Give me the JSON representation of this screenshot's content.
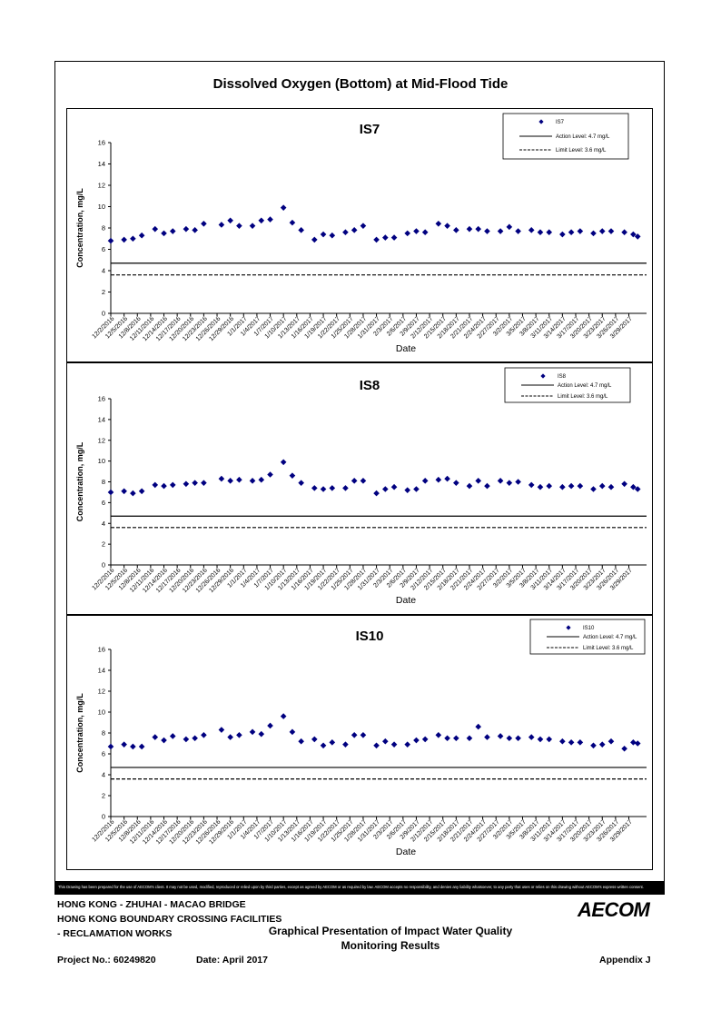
{
  "page": {
    "title": "Dissolved Oxygen (Bottom) at Mid-Flood Tide",
    "disclaimer": "This Drawing has been prepared for the use of AECOM's client. It may not be used, modified, reproduced or relied upon by third parties, except as agreed by AECOM or as required by law. AECOM accepts no responsibility, and denies any liability whatsoever, to any party that uses or relies on this drawing without AECOM's express written consent.",
    "project_lines": [
      "HONG KONG - ZHUHAI - MACAO BRIDGE",
      "HONG KONG BOUNDARY CROSSING FACILITIES",
      "- RECLAMATION WORKS"
    ],
    "presentation_title_1": "Graphical Presentation of Impact Water Quality",
    "presentation_title_2": "Monitoring Results",
    "project_no": "Project No.: 60249820",
    "date": "Date: April 2017",
    "appendix": "Appendix J",
    "logo": "AECOM"
  },
  "chart_data": [
    {
      "type": "scatter",
      "title": "IS7",
      "xlabel": "Date",
      "ylabel": "Concentration, mg/L",
      "ylim": [
        0,
        16
      ],
      "yticks": [
        0,
        2,
        4,
        6,
        8,
        10,
        12,
        14,
        16
      ],
      "xtick_labels": [
        "12/2/2016",
        "12/5/2016",
        "12/8/2016",
        "12/11/2016",
        "12/14/2016",
        "12/17/2016",
        "12/20/2016",
        "12/23/2016",
        "12/26/2016",
        "12/29/2016",
        "1/1/2017",
        "1/4/2017",
        "1/7/2017",
        "1/10/2017",
        "1/13/2017",
        "1/16/2017",
        "1/19/2017",
        "1/22/2017",
        "1/25/2017",
        "1/28/2017",
        "1/31/2017",
        "2/3/2017",
        "2/6/2017",
        "2/9/2017",
        "2/12/2017",
        "2/15/2017",
        "2/18/2017",
        "2/21/2017",
        "2/24/2017",
        "2/27/2017",
        "3/2/2017",
        "3/5/2017",
        "3/8/2017",
        "3/11/2017",
        "3/14/2017",
        "3/17/2017",
        "3/20/2017",
        "3/23/2017",
        "3/26/2017",
        "3/29/2017"
      ],
      "grid": false,
      "legend_position": "top-right",
      "series": [
        {
          "name": "IS7",
          "color": "#000080",
          "marker": "diamond",
          "x": [
            "12/2/2016",
            "12/5/2016",
            "12/7/2016",
            "12/9/2016",
            "12/12/2016",
            "12/14/2016",
            "12/16/2016",
            "12/19/2016",
            "12/21/2016",
            "12/23/2016",
            "12/27/2016",
            "12/29/2016",
            "12/31/2016",
            "1/3/2017",
            "1/5/2017",
            "1/7/2017",
            "1/10/2017",
            "1/12/2017",
            "1/14/2017",
            "1/17/2017",
            "1/19/2017",
            "1/21/2017",
            "1/24/2017",
            "1/26/2017",
            "1/28/2017",
            "1/31/2017",
            "2/2/2017",
            "2/4/2017",
            "2/7/2017",
            "2/9/2017",
            "2/11/2017",
            "2/14/2017",
            "2/16/2017",
            "2/18/2017",
            "2/21/2017",
            "2/23/2017",
            "2/25/2017",
            "2/28/2017",
            "3/2/2017",
            "3/4/2017",
            "3/7/2017",
            "3/9/2017",
            "3/11/2017",
            "3/14/2017",
            "3/16/2017",
            "3/18/2017",
            "3/21/2017",
            "3/23/2017",
            "3/25/2017",
            "3/28/2017",
            "3/30/2017",
            "3/31/2017"
          ],
          "y": [
            6.8,
            6.9,
            7.0,
            7.3,
            7.9,
            7.5,
            7.7,
            7.9,
            7.8,
            8.4,
            8.3,
            8.7,
            8.2,
            8.2,
            8.7,
            8.8,
            9.9,
            8.5,
            7.8,
            6.9,
            7.4,
            7.3,
            7.6,
            7.8,
            8.2,
            6.9,
            7.1,
            7.1,
            7.5,
            7.7,
            7.6,
            8.4,
            8.2,
            7.8,
            7.9,
            7.9,
            7.7,
            7.7,
            8.1,
            7.7,
            7.8,
            7.6,
            7.6,
            7.4,
            7.6,
            7.7,
            7.5,
            7.7,
            7.7,
            7.6,
            7.4,
            7.2
          ]
        }
      ],
      "reference_lines": [
        {
          "label": "Action Level: 4.7 mg/L",
          "value": 4.7,
          "style": "solid"
        },
        {
          "label": "Limit Level: 3.6 mg/L",
          "value": 3.6,
          "style": "dashed"
        }
      ]
    },
    {
      "type": "scatter",
      "title": "IS8",
      "xlabel": "Date",
      "ylabel": "Concentration, mg/L",
      "ylim": [
        0,
        16
      ],
      "yticks": [
        0,
        2,
        4,
        6,
        8,
        10,
        12,
        14,
        16
      ],
      "xtick_labels": [
        "12/2/2016",
        "12/5/2016",
        "12/8/2016",
        "12/11/2016",
        "12/14/2016",
        "12/17/2016",
        "12/20/2016",
        "12/23/2016",
        "12/26/2016",
        "12/29/2016",
        "1/1/2017",
        "1/4/2017",
        "1/7/2017",
        "1/10/2017",
        "1/13/2017",
        "1/16/2017",
        "1/19/2017",
        "1/22/2017",
        "1/25/2017",
        "1/28/2017",
        "1/31/2017",
        "2/3/2017",
        "2/6/2017",
        "2/9/2017",
        "2/12/2017",
        "2/15/2017",
        "2/18/2017",
        "2/21/2017",
        "2/24/2017",
        "2/27/2017",
        "3/2/2017",
        "3/5/2017",
        "3/8/2017",
        "3/11/2017",
        "3/14/2017",
        "3/17/2017",
        "3/20/2017",
        "3/23/2017",
        "3/26/2017",
        "3/29/2017"
      ],
      "grid": false,
      "legend_position": "top-right",
      "series": [
        {
          "name": "IS8",
          "color": "#000080",
          "marker": "diamond",
          "x": [
            "12/2/2016",
            "12/5/2016",
            "12/7/2016",
            "12/9/2016",
            "12/12/2016",
            "12/14/2016",
            "12/16/2016",
            "12/19/2016",
            "12/21/2016",
            "12/23/2016",
            "12/27/2016",
            "12/29/2016",
            "12/31/2016",
            "1/3/2017",
            "1/5/2017",
            "1/7/2017",
            "1/10/2017",
            "1/12/2017",
            "1/14/2017",
            "1/17/2017",
            "1/19/2017",
            "1/21/2017",
            "1/24/2017",
            "1/26/2017",
            "1/28/2017",
            "1/31/2017",
            "2/2/2017",
            "2/4/2017",
            "2/7/2017",
            "2/9/2017",
            "2/11/2017",
            "2/14/2017",
            "2/16/2017",
            "2/18/2017",
            "2/21/2017",
            "2/23/2017",
            "2/25/2017",
            "2/28/2017",
            "3/2/2017",
            "3/4/2017",
            "3/7/2017",
            "3/9/2017",
            "3/11/2017",
            "3/14/2017",
            "3/16/2017",
            "3/18/2017",
            "3/21/2017",
            "3/23/2017",
            "3/25/2017",
            "3/28/2017",
            "3/30/2017",
            "3/31/2017"
          ],
          "y": [
            7.0,
            7.1,
            6.9,
            7.1,
            7.7,
            7.6,
            7.7,
            7.8,
            7.9,
            7.9,
            8.3,
            8.1,
            8.2,
            8.1,
            8.2,
            8.7,
            9.9,
            8.6,
            7.9,
            7.4,
            7.3,
            7.4,
            7.4,
            8.1,
            8.1,
            6.9,
            7.3,
            7.5,
            7.2,
            7.3,
            8.1,
            8.2,
            8.3,
            7.9,
            7.6,
            8.1,
            7.6,
            8.1,
            7.9,
            8.0,
            7.7,
            7.5,
            7.6,
            7.5,
            7.6,
            7.6,
            7.3,
            7.6,
            7.5,
            7.8,
            7.5,
            7.3
          ]
        }
      ],
      "reference_lines": [
        {
          "label": "Action Level: 4.7 mg/L",
          "value": 4.7,
          "style": "solid"
        },
        {
          "label": "Limit Level: 3.6 mg/L",
          "value": 3.6,
          "style": "dashed"
        }
      ]
    },
    {
      "type": "scatter",
      "title": "IS10",
      "xlabel": "Date",
      "ylabel": "Concentration, mg/L",
      "ylim": [
        0,
        16
      ],
      "yticks": [
        0,
        2,
        4,
        6,
        8,
        10,
        12,
        14,
        16
      ],
      "xtick_labels": [
        "12/2/2016",
        "12/5/2016",
        "12/8/2016",
        "12/11/2016",
        "12/14/2016",
        "12/17/2016",
        "12/20/2016",
        "12/23/2016",
        "12/26/2016",
        "12/29/2016",
        "1/1/2017",
        "1/4/2017",
        "1/7/2017",
        "1/10/2017",
        "1/13/2017",
        "1/16/2017",
        "1/19/2017",
        "1/22/2017",
        "1/25/2017",
        "1/28/2017",
        "1/31/2017",
        "2/3/2017",
        "2/6/2017",
        "2/9/2017",
        "2/12/2017",
        "2/15/2017",
        "2/18/2017",
        "2/21/2017",
        "2/24/2017",
        "2/27/2017",
        "3/2/2017",
        "3/5/2017",
        "3/8/2017",
        "3/11/2017",
        "3/14/2017",
        "3/17/2017",
        "3/20/2017",
        "3/23/2017",
        "3/26/2017",
        "3/29/2017"
      ],
      "grid": false,
      "legend_position": "top-right",
      "series": [
        {
          "name": "IS10",
          "color": "#000080",
          "marker": "diamond",
          "x": [
            "12/2/2016",
            "12/5/2016",
            "12/7/2016",
            "12/9/2016",
            "12/12/2016",
            "12/14/2016",
            "12/16/2016",
            "12/19/2016",
            "12/21/2016",
            "12/23/2016",
            "12/27/2016",
            "12/29/2016",
            "12/31/2016",
            "1/3/2017",
            "1/5/2017",
            "1/7/2017",
            "1/10/2017",
            "1/12/2017",
            "1/14/2017",
            "1/17/2017",
            "1/19/2017",
            "1/21/2017",
            "1/24/2017",
            "1/26/2017",
            "1/28/2017",
            "1/31/2017",
            "2/2/2017",
            "2/4/2017",
            "2/7/2017",
            "2/9/2017",
            "2/11/2017",
            "2/14/2017",
            "2/16/2017",
            "2/18/2017",
            "2/21/2017",
            "2/23/2017",
            "2/25/2017",
            "2/28/2017",
            "3/2/2017",
            "3/4/2017",
            "3/7/2017",
            "3/9/2017",
            "3/11/2017",
            "3/14/2017",
            "3/16/2017",
            "3/18/2017",
            "3/21/2017",
            "3/23/2017",
            "3/25/2017",
            "3/28/2017",
            "3/30/2017",
            "3/31/2017"
          ],
          "y": [
            6.7,
            6.9,
            6.7,
            6.7,
            7.6,
            7.3,
            7.7,
            7.4,
            7.5,
            7.8,
            8.3,
            7.6,
            7.8,
            8.1,
            7.9,
            8.7,
            9.6,
            8.1,
            7.2,
            7.4,
            6.8,
            7.1,
            6.9,
            7.8,
            7.8,
            6.8,
            7.2,
            6.9,
            6.9,
            7.3,
            7.4,
            7.8,
            7.5,
            7.5,
            7.5,
            8.6,
            7.6,
            7.7,
            7.5,
            7.5,
            7.6,
            7.4,
            7.4,
            7.2,
            7.1,
            7.1,
            6.8,
            6.9,
            7.2,
            6.5,
            7.1,
            7.0
          ]
        }
      ],
      "reference_lines": [
        {
          "label": "Action Level: 4.7 mg/L",
          "value": 4.7,
          "style": "solid"
        },
        {
          "label": "Limit Level: 3.6 mg/L",
          "value": 3.6,
          "style": "dashed"
        }
      ]
    }
  ]
}
